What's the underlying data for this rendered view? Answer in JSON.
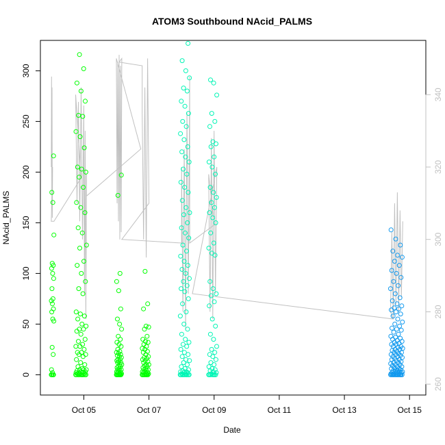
{
  "chart_data": {
    "type": "scatter",
    "title": "ATOM3 Southbound NAcid_PALMS",
    "xlabel": "Date",
    "ylabel": "NAcid_PALMS",
    "xlim": [
      "2017-10-03T16:00",
      "2017-10-15T12:00"
    ],
    "ylim": [
      -20,
      330
    ],
    "y2lim": [
      257,
      355
    ],
    "x_ticks": [
      {
        "x": "2017-10-05",
        "label": "Oct 05"
      },
      {
        "x": "2017-10-07",
        "label": "Oct 07"
      },
      {
        "x": "2017-10-09",
        "label": "Oct 09"
      },
      {
        "x": "2017-10-11",
        "label": "Oct 11"
      },
      {
        "x": "2017-10-13",
        "label": "Oct 13"
      },
      {
        "x": "2017-10-15",
        "label": "Oct 15"
      }
    ],
    "y_ticks": [
      0,
      50,
      100,
      150,
      200,
      250,
      300
    ],
    "y2_ticks": [
      260,
      280,
      300,
      320,
      340
    ],
    "grid": false,
    "legend": "none",
    "colors": {
      "flight_color_start": "#00ff00",
      "flight_color_mid": "#00ffcc",
      "flight_color_end": "#0099ff",
      "secondary_line": "#c0c0c0",
      "axis": "#000000",
      "secondary_axis": "#c0c0c0"
    },
    "series": [
      {
        "kind": "scatter",
        "axis": "left",
        "flights": [
          {
            "x_start": "2017-10-04T00:00",
            "x_end": "2017-10-04T02:00",
            "color": "#00ff00",
            "y": [
              0,
              0,
              0,
              0,
              2,
              5,
              20,
              27,
              53,
              55,
              62,
              65,
              70,
              73,
              75,
              85,
              95,
              100,
              105,
              108,
              110,
              138,
              170,
              180,
              216
            ]
          },
          {
            "x_start": "2017-10-04T18:00",
            "x_end": "2017-10-05T02:00",
            "color": "#00ff00",
            "y": [
              0,
              0,
              0,
              0,
              0,
              0,
              0,
              0,
              0,
              0,
              1,
              1,
              1,
              2,
              2,
              2,
              3,
              3,
              4,
              5,
              5,
              5,
              6,
              8,
              10,
              12,
              15,
              18,
              20,
              20,
              22,
              22,
              25,
              28,
              28,
              30,
              33,
              35,
              40,
              43,
              45,
              45,
              48,
              50,
              55,
              58,
              60,
              62,
              80,
              85,
              92,
              100,
              108,
              112,
              125,
              128,
              140,
              145,
              160,
              165,
              170,
              185,
              195,
              200,
              203,
              205,
              224,
              235,
              240,
              255,
              256,
              270,
              280,
              288,
              302,
              316
            ]
          },
          {
            "x_start": "2017-10-06T00:00",
            "x_end": "2017-10-06T04:00",
            "color": "#00ff00",
            "y": [
              0,
              0,
              0,
              0,
              0,
              0,
              0,
              0,
              1,
              1,
              2,
              2,
              3,
              3,
              4,
              5,
              5,
              6,
              7,
              8,
              8,
              10,
              10,
              12,
              12,
              13,
              14,
              15,
              15,
              17,
              18,
              19,
              20,
              21,
              22,
              23,
              25,
              28,
              30,
              32,
              35,
              38,
              45,
              50,
              55,
              65,
              83,
              92,
              100,
              177,
              197
            ]
          },
          {
            "x_start": "2017-10-06T19:00",
            "x_end": "2017-10-07T00:00",
            "color": "#00ff00",
            "y": [
              0,
              0,
              0,
              0,
              0,
              0,
              0,
              0,
              1,
              1,
              2,
              2,
              3,
              3,
              4,
              5,
              5,
              6,
              7,
              8,
              9,
              10,
              10,
              12,
              13,
              14,
              15,
              16,
              17,
              18,
              20,
              22,
              23,
              25,
              26,
              28,
              30,
              32,
              33,
              35,
              38,
              45,
              47,
              48,
              65,
              70,
              102
            ]
          },
          {
            "x_start": "2017-10-07T23:00",
            "x_end": "2017-10-08T06:00",
            "color": "#00f5b5",
            "y": [
              0,
              0,
              0,
              0,
              0,
              0,
              0,
              0,
              0,
              1,
              1,
              2,
              2,
              3,
              3,
              4,
              5,
              6,
              8,
              10,
              12,
              14,
              15,
              18,
              20,
              22,
              25,
              28,
              30,
              32,
              35,
              40,
              45,
              50,
              58,
              62,
              70,
              75,
              82,
              85,
              88,
              92,
              95,
              100,
              104,
              108,
              112,
              117,
              122,
              128,
              135,
              140,
              145,
              150,
              158,
              160,
              165,
              172,
              180,
              185,
              190,
              198,
              203,
              210,
              215,
              220,
              225,
              232,
              238,
              245,
              250,
              258,
              265,
              270,
              280,
              283,
              293,
              300,
              310,
              327
            ]
          },
          {
            "x_start": "2017-10-08T20:00",
            "x_end": "2017-10-09T02:00",
            "color": "#00f5b5",
            "y": [
              0,
              0,
              0,
              0,
              0,
              0,
              0,
              1,
              2,
              3,
              4,
              5,
              6,
              8,
              10,
              12,
              15,
              18,
              20,
              22,
              25,
              28,
              35,
              40,
              48,
              55,
              68,
              72,
              78,
              80,
              85,
              92,
              118,
              120,
              125,
              130,
              140,
              150,
              155,
              160,
              165,
              170,
              175,
              180,
              185,
              198,
              205,
              210,
              215,
              225,
              228,
              230,
              245,
              250,
              258,
              276,
              288,
              291
            ]
          },
          {
            "x_start": "2017-10-14T10:00",
            "x_end": "2017-10-14T19:00",
            "color": "#1199ee",
            "y": [
              0,
              0,
              0,
              0,
              0,
              0,
              0,
              0,
              0,
              0,
              0,
              0,
              0,
              1,
              1,
              1,
              2,
              2,
              2,
              3,
              3,
              3,
              4,
              4,
              5,
              5,
              6,
              6,
              7,
              8,
              8,
              9,
              10,
              10,
              11,
              12,
              12,
              13,
              14,
              15,
              15,
              16,
              17,
              18,
              18,
              19,
              20,
              20,
              21,
              22,
              22,
              23,
              24,
              25,
              25,
              26,
              27,
              28,
              28,
              30,
              30,
              31,
              32,
              33,
              34,
              35,
              36,
              37,
              38,
              40,
              42,
              44,
              45,
              46,
              48,
              50,
              52,
              55,
              58,
              60,
              62,
              64,
              65,
              66,
              68,
              70,
              73,
              76,
              80,
              85,
              88,
              92,
              96,
              100,
              103,
              108,
              112,
              116,
              118,
              122,
              128,
              134,
              143
            ]
          }
        ]
      },
      {
        "kind": "line",
        "axis": "right",
        "name": "",
        "points": [
          [
            "2017-10-04T00:00",
            320
          ],
          [
            "2017-10-04T00:12",
            345
          ],
          [
            "2017-10-04T00:24",
            312
          ],
          [
            "2017-10-04T00:36",
            342
          ],
          [
            "2017-10-04T00:48",
            306
          ],
          [
            "2017-10-04T01:00",
            320
          ],
          [
            "2017-10-04T00:00",
            305
          ],
          [
            "2017-10-04T02:00",
            305
          ],
          [
            "2017-10-04T22:00",
            317
          ],
          [
            "2017-10-04T18:00",
            340
          ],
          [
            "2017-10-04T19:00",
            310
          ],
          [
            "2017-10-04T20:00",
            338
          ],
          [
            "2017-10-04T21:00",
            305
          ],
          [
            "2017-10-04T22:00",
            342
          ],
          [
            "2017-10-04T23:00",
            300
          ],
          [
            "2017-10-05T00:00",
            337
          ],
          [
            "2017-10-05T00:30",
            285
          ],
          [
            "2017-10-05T01:00",
            330
          ],
          [
            "2017-10-05T01:30",
            278
          ],
          [
            "2017-10-05T02:00",
            318
          ],
          [
            "2017-10-05T02:00",
            312
          ],
          [
            "2017-10-06T18:00",
            325
          ],
          [
            "2017-10-06T00:00",
            350
          ],
          [
            "2017-10-06T00:30",
            310
          ],
          [
            "2017-10-06T01:00",
            349
          ],
          [
            "2017-10-06T01:30",
            305
          ],
          [
            "2017-10-06T02:00",
            351
          ],
          [
            "2017-10-06T02:30",
            300
          ],
          [
            "2017-10-06T03:00",
            348
          ],
          [
            "2017-10-06T03:30",
            302
          ],
          [
            "2017-10-06T04:00",
            350
          ],
          [
            "2017-10-06T02:00",
            349
          ],
          [
            "2017-10-06T19:00",
            348
          ],
          [
            "2017-10-06T19:00",
            335
          ],
          [
            "2017-10-06T20:00",
            300
          ],
          [
            "2017-10-06T21:00",
            342
          ],
          [
            "2017-10-06T22:00",
            295
          ],
          [
            "2017-10-06T23:00",
            350
          ],
          [
            "2017-10-07T00:00",
            310
          ],
          [
            "2017-10-06T04:00",
            300
          ],
          [
            "2017-10-08T00:00",
            299
          ],
          [
            "2017-10-08T00:00",
            320
          ],
          [
            "2017-10-08T01:00",
            280
          ],
          [
            "2017-10-08T02:00",
            325
          ],
          [
            "2017-10-08T03:00",
            275
          ],
          [
            "2017-10-08T04:00",
            335
          ],
          [
            "2017-10-08T05:00",
            285
          ],
          [
            "2017-10-08T06:00",
            345
          ],
          [
            "2017-10-08T06:00",
            299
          ],
          [
            "2017-10-09T00:00",
            304
          ],
          [
            "2017-10-08T20:00",
            318
          ],
          [
            "2017-10-08T21:00",
            280
          ],
          [
            "2017-10-08T22:00",
            328
          ],
          [
            "2017-10-08T23:00",
            278
          ],
          [
            "2017-10-09T00:00",
            330
          ],
          [
            "2017-10-09T01:00",
            285
          ],
          [
            "2017-10-09T02:00",
            320
          ],
          [
            "2017-10-08T08:00",
            285
          ],
          [
            "2017-10-14T12:00",
            278
          ],
          [
            "2017-10-14T10:00",
            280
          ],
          [
            "2017-10-14T11:00",
            302
          ],
          [
            "2017-10-14T12:00",
            278
          ],
          [
            "2017-10-14T13:00",
            310
          ],
          [
            "2017-10-14T14:00",
            282
          ],
          [
            "2017-10-14T15:00",
            313
          ],
          [
            "2017-10-14T16:00",
            280
          ],
          [
            "2017-10-14T17:00",
            308
          ],
          [
            "2017-10-14T18:00",
            284
          ],
          [
            "2017-10-14T19:00",
            305
          ]
        ]
      }
    ]
  }
}
